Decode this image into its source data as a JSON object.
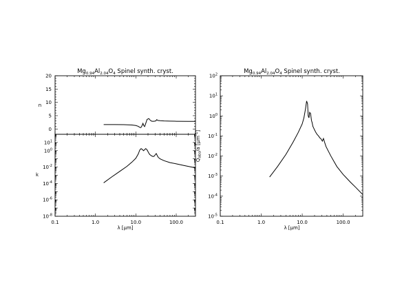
{
  "figure": {
    "left_title": {
      "pre": "Mg",
      "s1": "0.94",
      "mid1": "Al",
      "s2": "2.04",
      "mid2": "O",
      "s3": "4",
      "post": " Spinel synth. cryst."
    },
    "right_title": {
      "pre": "Mg",
      "s1": "0.94",
      "mid1": "Al",
      "s2": "2.04",
      "mid2": "O",
      "s3": "4",
      "post": " Spinel synth. cryst."
    }
  },
  "chart_data": [
    {
      "id": "n-panel",
      "type": "line",
      "ylabel": "n",
      "xscale": "log",
      "xlim": [
        0.1,
        300
      ],
      "ylim": [
        -2,
        20
      ],
      "yticks": [
        {
          "v": 0,
          "label": "0"
        },
        {
          "v": 5,
          "label": "5"
        },
        {
          "v": 10,
          "label": "10"
        },
        {
          "v": 15,
          "label": "15"
        },
        {
          "v": 20,
          "label": "20"
        }
      ],
      "series": [
        {
          "x": [
            1.6,
            3,
            5,
            8,
            10,
            11.5,
            12.5,
            13.3,
            14.2,
            15,
            15.8,
            16.5,
            17.5,
            19,
            21,
            23,
            25,
            28,
            31,
            33,
            35,
            40,
            50,
            70,
            100,
            200,
            300
          ],
          "y": [
            1.65,
            1.65,
            1.62,
            1.5,
            1.3,
            1.0,
            0.6,
            0.5,
            1.2,
            2.1,
            1.2,
            0.9,
            2.0,
            3.6,
            3.9,
            3.2,
            2.9,
            2.9,
            3.0,
            3.5,
            3.2,
            3.1,
            3.0,
            2.95,
            2.9,
            2.85,
            2.85
          ]
        }
      ]
    },
    {
      "id": "k-panel",
      "type": "line",
      "ylabel": "k",
      "xlabel": "λ [μm]",
      "xscale": "log",
      "yscale": "log",
      "xlim": [
        0.1,
        300
      ],
      "ylim": [
        1e-08,
        100
      ],
      "xticks": [
        {
          "v": 0.1,
          "label": "0.1"
        },
        {
          "v": 1,
          "label": "1.0"
        },
        {
          "v": 10,
          "label": "10.0"
        },
        {
          "v": 100,
          "label": "100.0"
        }
      ],
      "yticks": [
        {
          "e": -8,
          "label": "10"
        },
        {
          "e": -6,
          "label": "10"
        },
        {
          "e": -4,
          "label": "10"
        },
        {
          "e": -2,
          "label": "10"
        },
        {
          "e": 0,
          "label": "10"
        },
        {
          "e": 1,
          "label": "10"
        }
      ],
      "series": [
        {
          "x": [
            1.6,
            2.5,
            4,
            6,
            8,
            10,
            11.5,
            12.5,
            13.5,
            14.5,
            15.5,
            16.5,
            17.5,
            18.5,
            19.5,
            20.5,
            22,
            24,
            26,
            28,
            30,
            32,
            34,
            36,
            40,
            50,
            70,
            100,
            150,
            200,
            300
          ],
          "y": [
            0.00012,
            0.0006,
            0.003,
            0.012,
            0.04,
            0.12,
            0.4,
            1.2,
            1.8,
            1.4,
            1.0,
            1.3,
            1.8,
            1.5,
            1.0,
            0.6,
            0.35,
            0.25,
            0.2,
            0.2,
            0.3,
            0.45,
            0.25,
            0.15,
            0.1,
            0.06,
            0.035,
            0.025,
            0.016,
            0.012,
            0.008
          ]
        }
      ]
    },
    {
      "id": "q-panel",
      "type": "line",
      "ylabel": "Q",
      "ylabel_sub": "abs",
      "ylabel_post": "/a [μm",
      "ylabel_sup": "-1",
      "ylabel_end": "]",
      "xlabel": "λ [μm]",
      "xscale": "log",
      "yscale": "log",
      "xlim": [
        0.1,
        300
      ],
      "ylim": [
        1e-05,
        100
      ],
      "xticks": [
        {
          "v": 0.1,
          "label": "0.1"
        },
        {
          "v": 1,
          "label": "1.0"
        },
        {
          "v": 10,
          "label": "10.0"
        },
        {
          "v": 100,
          "label": "100.0"
        }
      ],
      "yticks": [
        {
          "e": -5,
          "label": "10"
        },
        {
          "e": -4,
          "label": "10"
        },
        {
          "e": -3,
          "label": "10"
        },
        {
          "e": -2,
          "label": "10"
        },
        {
          "e": -1,
          "label": "10"
        },
        {
          "e": 0,
          "label": "10"
        },
        {
          "e": 1,
          "label": "10"
        },
        {
          "e": 2,
          "label": "10"
        }
      ],
      "series": [
        {
          "x": [
            1.6,
            2.5,
            4,
            6,
            8,
            10,
            11,
            12,
            12.8,
            13.5,
            14,
            14.6,
            15.2,
            16,
            16.8,
            17.5,
            18.2,
            19,
            20,
            21.5,
            23,
            25,
            27,
            29,
            31,
            33,
            35,
            38,
            42,
            50,
            70,
            100,
            150,
            200,
            300
          ],
          "y": [
            0.0009,
            0.003,
            0.012,
            0.05,
            0.15,
            0.4,
            0.8,
            2.2,
            5.5,
            4.0,
            1.0,
            0.8,
            1.5,
            1.3,
            0.6,
            0.45,
            0.3,
            0.25,
            0.2,
            0.15,
            0.12,
            0.1,
            0.08,
            0.07,
            0.055,
            0.075,
            0.05,
            0.03,
            0.02,
            0.01,
            0.003,
            0.0012,
            0.0005,
            0.00028,
            0.00012
          ]
        }
      ]
    }
  ]
}
